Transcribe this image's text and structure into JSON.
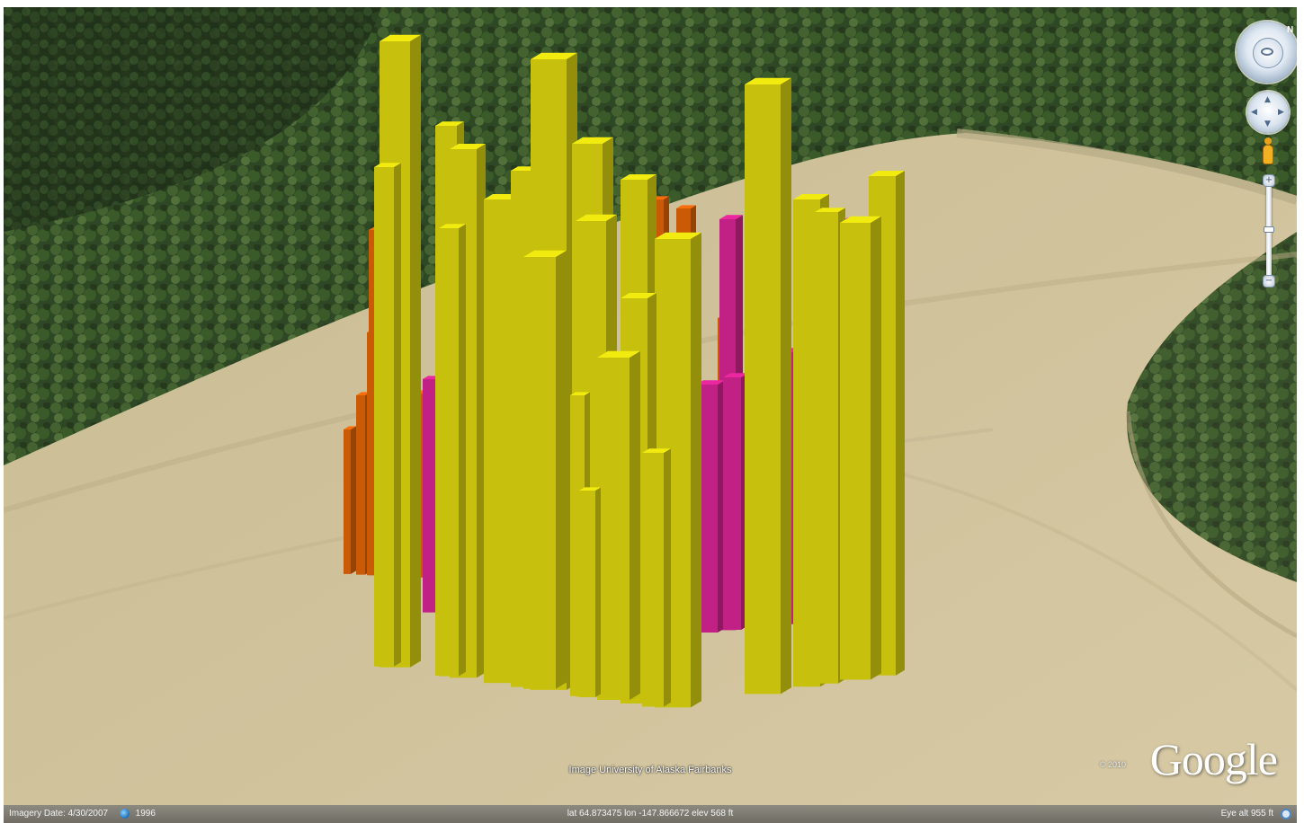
{
  "scene": {
    "colors": {
      "yellow": "#d8d20e",
      "orange": "#dd6208",
      "magenta": "#d2248f",
      "forest": "#2c4422",
      "field": "#cbbd95"
    }
  },
  "controls": {
    "look_icon": "look-joystick-icon",
    "move_icon": "move-joystick-icon",
    "pegman_icon": "street-view-pegman-icon",
    "zoom_in": "+",
    "zoom_out": "−",
    "north": "N"
  },
  "attribution": "Image University of Alaska Fairbanks",
  "logo": {
    "text": "Google",
    "small_text": "© 2010"
  },
  "status": {
    "imagery_date": "Imagery Date: 4/30/2007",
    "year": "1996",
    "coords": "lat 64.873475  lon -147.866672  elev 568 ft",
    "eye_alt": "Eye alt 955 ft"
  }
}
